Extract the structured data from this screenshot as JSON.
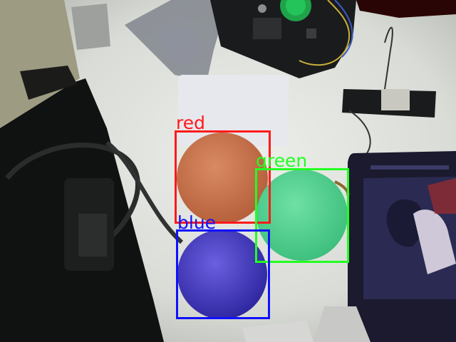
{
  "detections": [
    {
      "label": "red",
      "color": "#ff1a1a"
    },
    {
      "label": "green",
      "color": "#22ff22"
    },
    {
      "label": "blue",
      "color": "#1010ff"
    }
  ],
  "objects": [
    {
      "name": "orange-ball",
      "color": "#c9714a"
    },
    {
      "name": "green-ball",
      "color": "#4fd18e"
    },
    {
      "name": "blue-ball",
      "color": "#4a3fc8"
    }
  ]
}
